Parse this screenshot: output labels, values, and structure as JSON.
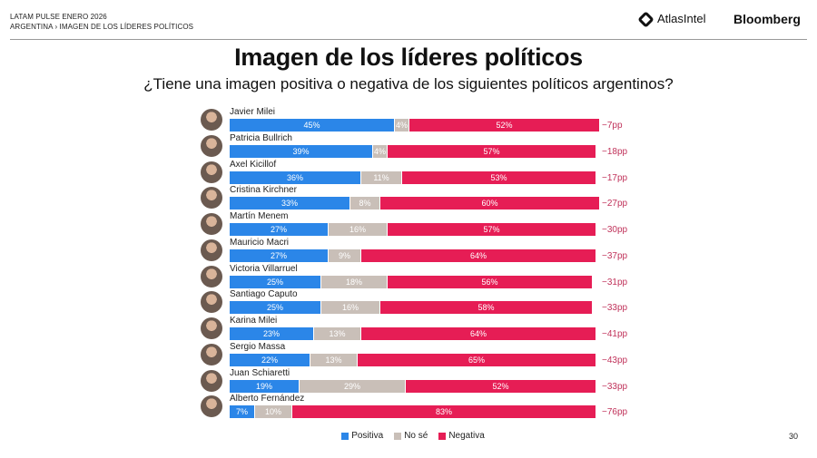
{
  "header": {
    "line1": "LATAM PULSE ENERO 2026",
    "line2": "ARGENTINA › IMAGEN DE LOS LÍDERES POLÍTICOS",
    "atlas_logo": "AtlasIntel",
    "bloomberg_logo": "Bloomberg"
  },
  "page_number": "30",
  "chart_data": {
    "type": "bar",
    "orientation": "horizontal-stacked-100",
    "title": "Imagen de los líderes políticos",
    "subtitle": "¿Tiene una imagen positiva o negativa de los siguientes políticos argentinos?",
    "legend_position": "bottom",
    "colors": {
      "Positiva": "#2b86e8",
      "No sé": "#c9bfb8",
      "Negativa": "#e61d55"
    },
    "legend": [
      "Positiva",
      "No sé",
      "Negativa"
    ],
    "categories": [
      "Javier Milei",
      "Patricia Bullrich",
      "Axel Kicillof",
      "Cristina Kirchner",
      "Martín Menem",
      "Mauricio Macri",
      "Victoria Villarruel",
      "Santiago Caputo",
      "Karina Milei",
      "Sergio Massa",
      "Juan Schiaretti",
      "Alberto Fernández"
    ],
    "series": [
      {
        "name": "Positiva",
        "values": [
          45,
          39,
          36,
          33,
          27,
          27,
          25,
          25,
          23,
          22,
          19,
          7
        ]
      },
      {
        "name": "No sé",
        "values": [
          4,
          4,
          11,
          8,
          16,
          9,
          18,
          16,
          13,
          13,
          29,
          10
        ]
      },
      {
        "name": "Negativa",
        "values": [
          52,
          57,
          53,
          60,
          57,
          64,
          56,
          58,
          64,
          65,
          52,
          83
        ]
      }
    ],
    "net": [
      "−7pp",
      "−18pp",
      "−17pp",
      "−27pp",
      "−30pp",
      "−37pp",
      "−31pp",
      "−33pp",
      "−41pp",
      "−43pp",
      "−33pp",
      "−76pp"
    ]
  }
}
